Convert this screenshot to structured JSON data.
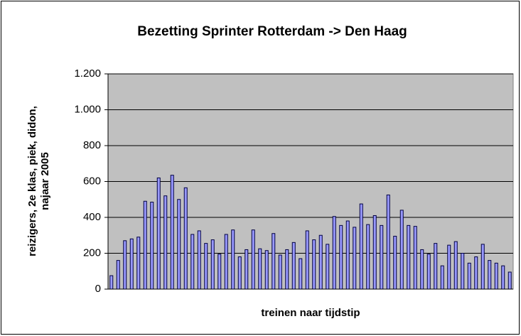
{
  "chart_data": {
    "type": "bar",
    "title": "Bezetting Sprinter Rotterdam -> Den Haag",
    "x_label": "treinen naar tijdstip",
    "y_label": [
      "reizigers, 2e klas, piek, didon,",
      "najaar 2005"
    ],
    "categories": [
      null,
      null,
      null,
      null,
      null,
      null,
      null,
      null,
      null,
      null,
      null,
      null,
      null,
      null,
      null,
      null,
      null,
      null,
      null,
      null,
      null,
      null,
      null,
      null,
      null,
      null,
      null,
      null,
      null,
      null,
      null,
      null,
      null,
      null,
      null,
      null,
      null,
      null,
      null,
      null,
      null,
      null,
      null,
      null,
      null,
      null,
      null,
      null,
      null,
      null,
      null,
      null,
      null,
      null,
      null,
      null,
      null,
      null,
      null,
      null
    ],
    "values": [
      75,
      160,
      270,
      280,
      290,
      490,
      485,
      620,
      520,
      635,
      500,
      565,
      305,
      325,
      255,
      275,
      195,
      305,
      330,
      180,
      220,
      330,
      225,
      215,
      310,
      190,
      220,
      260,
      170,
      325,
      275,
      300,
      250,
      405,
      355,
      380,
      345,
      475,
      360,
      410,
      355,
      525,
      295,
      440,
      355,
      350,
      220,
      195,
      255,
      130,
      245,
      265,
      200,
      145,
      180,
      250,
      160,
      145,
      130,
      95
    ],
    "color": "#9999ff",
    "ylim": [
      0,
      1200
    ],
    "yticks": [
      0,
      200,
      400,
      600,
      800,
      {
        "value": 1000,
        "label": "1.000"
      },
      {
        "value": 1200,
        "label": "1.200"
      }
    ],
    "grid": true
  }
}
